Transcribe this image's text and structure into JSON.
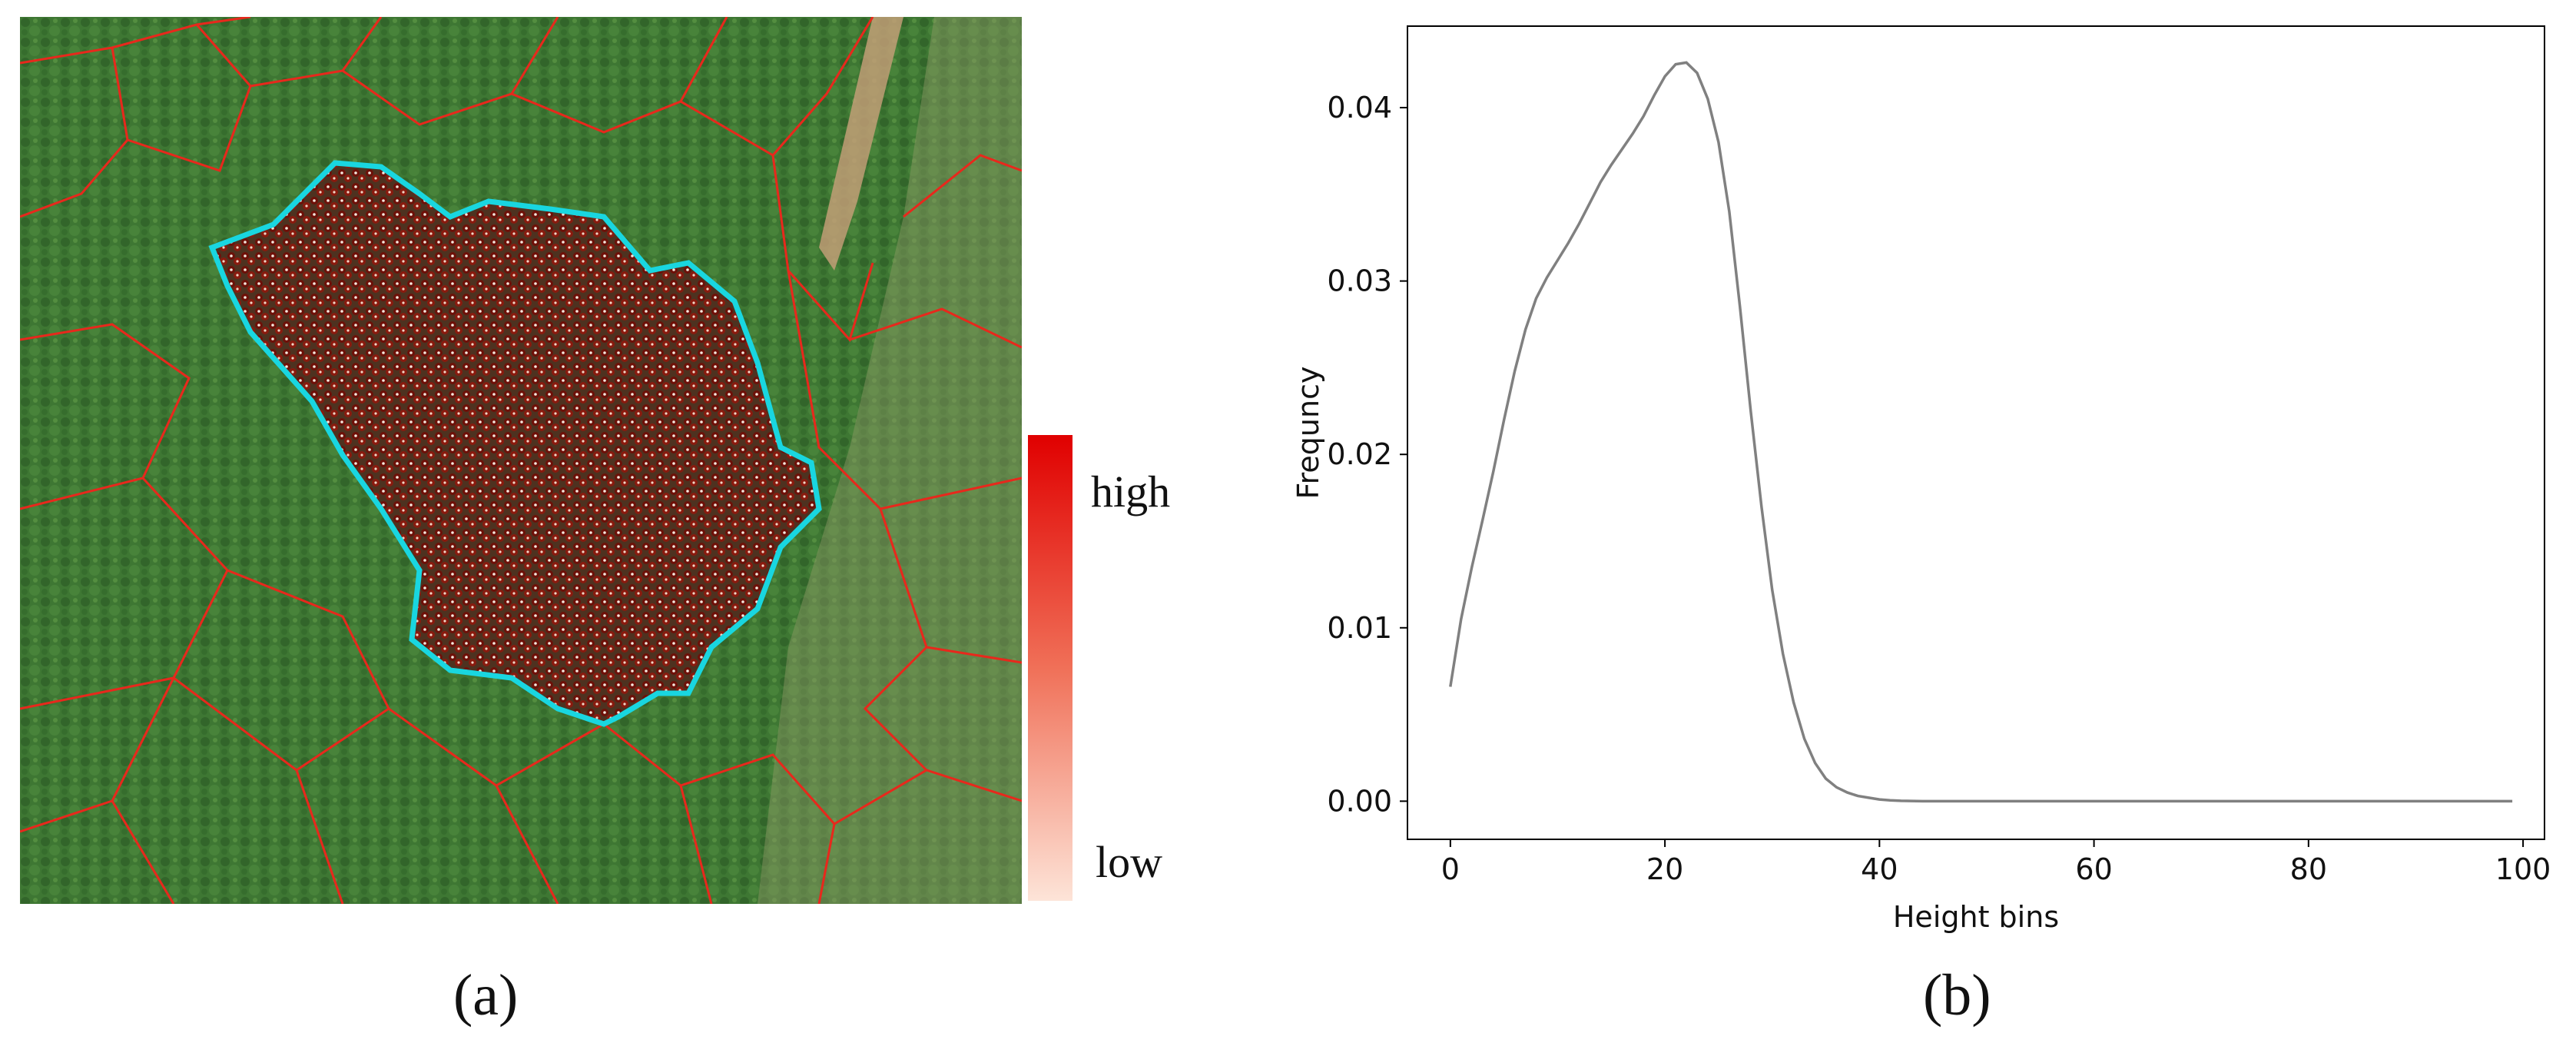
{
  "panel_a": {
    "label": "(a)",
    "colorbar": {
      "high_label": "high",
      "low_label": "low",
      "high_color": "#e00000",
      "low_color": "#fde4d8"
    },
    "colors": {
      "boundary": "#e8281c",
      "selected_stand_outline": "#19d6e0",
      "tree_marker": "#6e1008",
      "canopy": "#3f7a34"
    }
  },
  "panel_b": {
    "label": "(b)"
  },
  "chart_data": {
    "type": "line",
    "xlabel": "Height bins",
    "ylabel": "Frequncy",
    "xlim": [
      -4,
      102
    ],
    "ylim": [
      -0.0022,
      0.0447
    ],
    "xticks": [
      0,
      20,
      40,
      60,
      80,
      100
    ],
    "yticks": [
      0.0,
      0.01,
      0.02,
      0.03,
      0.04
    ],
    "xtick_labels": [
      "0",
      "20",
      "40",
      "60",
      "80",
      "100"
    ],
    "ytick_labels": [
      "0.00",
      "0.01",
      "0.02",
      "0.03",
      "0.04"
    ],
    "grid": false,
    "line_color": "#808080",
    "series": [
      {
        "x": [
          0,
          1,
          2,
          3,
          4,
          5,
          6,
          7,
          8,
          9,
          10,
          11,
          12,
          13,
          14,
          15,
          16,
          17,
          18,
          19,
          20,
          21,
          22,
          23,
          24,
          25,
          26,
          27,
          28,
          29,
          30,
          31,
          32,
          33,
          34,
          35,
          36,
          37,
          38,
          39,
          40,
          41,
          42,
          43,
          44,
          46,
          50,
          60,
          70,
          80,
          90,
          99
        ],
        "y": [
          0.0066,
          0.0105,
          0.0135,
          0.0162,
          0.019,
          0.022,
          0.0248,
          0.0272,
          0.029,
          0.0302,
          0.0312,
          0.0322,
          0.0333,
          0.0345,
          0.0357,
          0.0367,
          0.0376,
          0.0385,
          0.0395,
          0.0407,
          0.0418,
          0.0425,
          0.0426,
          0.042,
          0.0405,
          0.038,
          0.034,
          0.0285,
          0.0225,
          0.017,
          0.0122,
          0.0085,
          0.0057,
          0.0036,
          0.0022,
          0.0013,
          0.0008,
          0.0005,
          0.0003,
          0.0002,
          0.0001,
          5e-05,
          2e-05,
          1e-05,
          0.0,
          0.0,
          0.0,
          0.0,
          0.0,
          0.0,
          0.0,
          0.0
        ]
      }
    ]
  }
}
